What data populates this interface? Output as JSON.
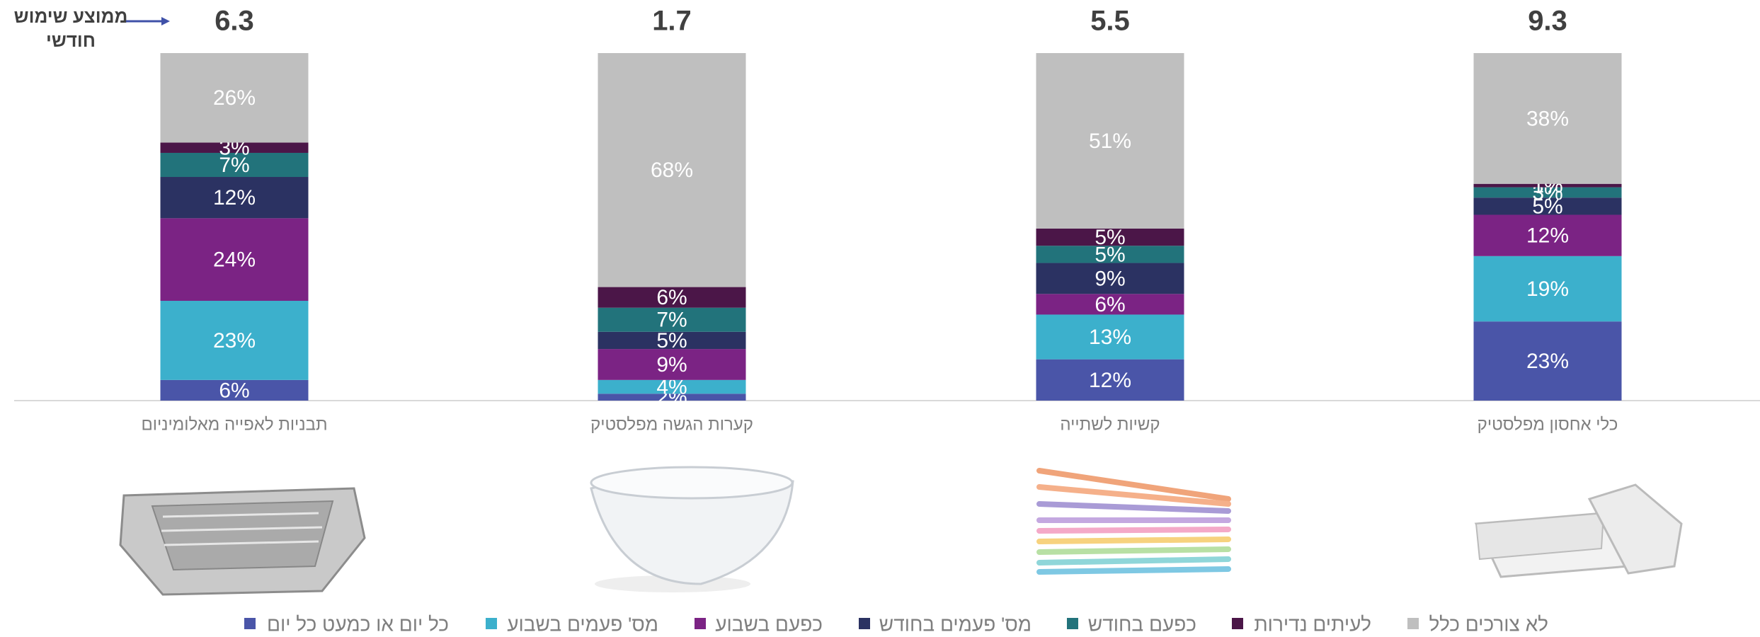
{
  "chart_data": {
    "type": "stacked_bar",
    "annotation": [
      "ממוצע שימוש",
      "חודשי"
    ],
    "categories": [
      "תבניות לאפייה מאלומיניום",
      "קערות הגשה מפלסטיק",
      "קשיות לשתייה",
      "כלי אחסון מפלסטיק"
    ],
    "monthly_average": [
      6.3,
      1.7,
      5.5,
      9.3
    ],
    "series": [
      {
        "name": "כל יום או כמעט כל יום",
        "color": "#4a55a8",
        "values": [
          6,
          2,
          12,
          23
        ],
        "value_labels": [
          "6%",
          "2%",
          "12%",
          "23%"
        ]
      },
      {
        "name": "מס' פעמים בשבוע",
        "color": "#3cb0cc",
        "values": [
          23,
          4,
          13,
          19
        ],
        "value_labels": [
          "23%",
          "4%",
          "13%",
          "19%"
        ]
      },
      {
        "name": "כפעם בשבוע",
        "color": "#7b2384",
        "values": [
          24,
          9,
          6,
          12
        ],
        "value_labels": [
          "24%",
          "9%",
          "6%",
          "12%"
        ]
      },
      {
        "name": "מס' פעמים בחודש",
        "color": "#2b3262",
        "values": [
          12,
          5,
          9,
          5
        ],
        "value_labels": [
          "12%",
          "5%",
          "9%",
          "5%"
        ]
      },
      {
        "name": "כפעם בחודש",
        "color": "#22737b",
        "values": [
          7,
          7,
          5,
          3
        ],
        "value_labels": [
          "7%",
          "7%",
          "5%",
          "3%"
        ]
      },
      {
        "name": "לעיתים נדירות",
        "color": "#4b1648",
        "values": [
          3,
          6,
          5,
          1
        ],
        "value_labels": [
          "3%",
          "6%",
          "5%",
          "1%"
        ]
      },
      {
        "name": "לא צורכים כלל",
        "color": "#bfbfbf",
        "values": [
          26,
          68,
          51,
          38
        ],
        "value_labels": [
          "26%",
          "68%",
          "51%",
          "38%"
        ]
      }
    ]
  }
}
